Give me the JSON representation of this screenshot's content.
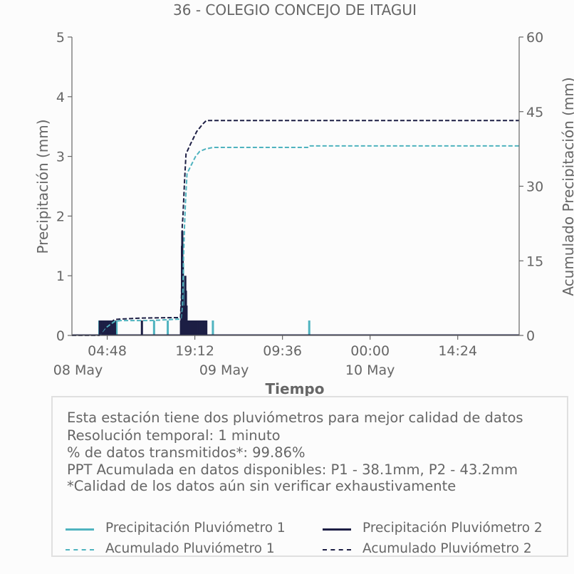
{
  "chart_data": {
    "type": "line",
    "title": "36 - COLEGIO CONCEJO DE ITAGUI",
    "xlabel": "Tiempo",
    "ylabel": "Precipitación (mm)",
    "y2label": "Acumulado Precipitación (mm)",
    "ylim": [
      0,
      5
    ],
    "y2lim": [
      0,
      60
    ],
    "yticks": [
      "0",
      "1",
      "2",
      "3",
      "4",
      "5"
    ],
    "y2ticks": [
      "0",
      "15",
      "30",
      "45",
      "60"
    ],
    "xlim": [
      "2024-05-07T23:00",
      "2024-05-11T00:30"
    ],
    "xticks": [
      {
        "t": "2024-05-08T04:48",
        "label": "04:48"
      },
      {
        "t": "2024-05-08T19:12",
        "label": "19:12"
      },
      {
        "t": "2024-05-09T09:36",
        "label": "09:36"
      },
      {
        "t": "2024-05-10T00:00",
        "label": "00:00"
      },
      {
        "t": "2024-05-10T14:24",
        "label": "14:24"
      }
    ],
    "date_labels": [
      {
        "t": "2024-05-08T00:00",
        "label": "08 May"
      },
      {
        "t": "2024-05-09T00:00",
        "label": "09 May"
      },
      {
        "t": "2024-05-10T00:00",
        "label": "10 May"
      }
    ],
    "series": [
      {
        "name": "Precipitación Pluviómetro 1",
        "kind": "bars",
        "axis": "left",
        "color": "#4fb3bf",
        "points": [
          [
            "2024-05-08T03:30",
            0.25
          ],
          [
            "2024-05-08T03:50",
            0.25
          ],
          [
            "2024-05-08T04:10",
            0.25
          ],
          [
            "2024-05-08T04:30",
            0.25
          ],
          [
            "2024-05-08T05:00",
            0.25
          ],
          [
            "2024-05-08T05:20",
            0.25
          ],
          [
            "2024-05-08T05:40",
            0.25
          ],
          [
            "2024-05-08T06:00",
            0.25
          ],
          [
            "2024-05-08T06:20",
            0.25
          ],
          [
            "2024-05-08T12:30",
            0.25
          ],
          [
            "2024-05-08T14:45",
            0.25
          ],
          [
            "2024-05-08T17:10",
            0.5
          ],
          [
            "2024-05-08T17:16",
            1.2
          ],
          [
            "2024-05-08T17:22",
            0.75
          ],
          [
            "2024-05-08T17:30",
            0.5
          ],
          [
            "2024-05-08T17:38",
            0.75
          ],
          [
            "2024-05-08T17:50",
            0.5
          ],
          [
            "2024-05-08T18:10",
            0.25
          ],
          [
            "2024-05-08T18:30",
            0.25
          ],
          [
            "2024-05-08T18:50",
            0.25
          ],
          [
            "2024-05-08T19:10",
            0.25
          ],
          [
            "2024-05-08T19:30",
            0.25
          ],
          [
            "2024-05-08T20:00",
            0.25
          ],
          [
            "2024-05-08T20:20",
            0.25
          ],
          [
            "2024-05-08T20:40",
            0.25
          ],
          [
            "2024-05-08T22:10",
            0.25
          ],
          [
            "2024-05-09T14:00",
            0.25
          ]
        ]
      },
      {
        "name": "Precipitación Pluviómetro 2",
        "kind": "bars",
        "axis": "left",
        "color": "#1d1f45",
        "points": [
          [
            "2024-05-08T03:35",
            0.25
          ],
          [
            "2024-05-08T03:45",
            0.25
          ],
          [
            "2024-05-08T03:55",
            0.25
          ],
          [
            "2024-05-08T04:05",
            0.25
          ],
          [
            "2024-05-08T04:15",
            0.25
          ],
          [
            "2024-05-08T04:25",
            0.25
          ],
          [
            "2024-05-08T04:35",
            0.25
          ],
          [
            "2024-05-08T04:45",
            0.25
          ],
          [
            "2024-05-08T04:55",
            0.25
          ],
          [
            "2024-05-08T05:05",
            0.25
          ],
          [
            "2024-05-08T05:15",
            0.25
          ],
          [
            "2024-05-08T05:25",
            0.25
          ],
          [
            "2024-05-08T05:35",
            0.25
          ],
          [
            "2024-05-08T05:45",
            0.25
          ],
          [
            "2024-05-08T05:55",
            0.25
          ],
          [
            "2024-05-08T06:05",
            0.25
          ],
          [
            "2024-05-08T10:30",
            0.25
          ],
          [
            "2024-05-08T16:55",
            0.25
          ],
          [
            "2024-05-08T17:00",
            0.5
          ],
          [
            "2024-05-08T17:05",
            1.5
          ],
          [
            "2024-05-08T17:08",
            1.75
          ],
          [
            "2024-05-08T17:12",
            1.25
          ],
          [
            "2024-05-08T17:18",
            0.5
          ],
          [
            "2024-05-08T17:25",
            0.25
          ],
          [
            "2024-05-08T17:32",
            0.5
          ],
          [
            "2024-05-08T17:38",
            1.0
          ],
          [
            "2024-05-08T17:44",
            0.75
          ],
          [
            "2024-05-08T17:50",
            0.5
          ],
          [
            "2024-05-08T17:56",
            0.25
          ],
          [
            "2024-05-08T18:02",
            0.25
          ],
          [
            "2024-05-08T18:08",
            0.25
          ],
          [
            "2024-05-08T18:14",
            0.25
          ],
          [
            "2024-05-08T18:20",
            0.25
          ],
          [
            "2024-05-08T18:26",
            0.25
          ],
          [
            "2024-05-08T18:32",
            0.25
          ],
          [
            "2024-05-08T18:38",
            0.25
          ],
          [
            "2024-05-08T18:44",
            0.25
          ],
          [
            "2024-05-08T18:50",
            0.25
          ],
          [
            "2024-05-08T18:56",
            0.25
          ],
          [
            "2024-05-08T19:02",
            0.25
          ],
          [
            "2024-05-08T19:08",
            0.25
          ],
          [
            "2024-05-08T19:14",
            0.25
          ],
          [
            "2024-05-08T19:20",
            0.25
          ],
          [
            "2024-05-08T19:26",
            0.25
          ],
          [
            "2024-05-08T19:32",
            0.25
          ],
          [
            "2024-05-08T19:38",
            0.25
          ],
          [
            "2024-05-08T19:44",
            0.25
          ],
          [
            "2024-05-08T19:55",
            0.25
          ],
          [
            "2024-05-08T20:05",
            0.25
          ],
          [
            "2024-05-08T20:15",
            0.25
          ],
          [
            "2024-05-08T20:25",
            0.25
          ],
          [
            "2024-05-08T20:35",
            0.25
          ],
          [
            "2024-05-08T20:45",
            0.25
          ],
          [
            "2024-05-08T20:55",
            0.25
          ],
          [
            "2024-05-08T21:05",
            0.25
          ]
        ]
      },
      {
        "name": "Acumulado Pluviómetro 1",
        "kind": "cumulative",
        "axis": "right",
        "color": "#4fb3bf",
        "points": [
          [
            "2024-05-07T23:00",
            0
          ],
          [
            "2024-05-08T03:30",
            0
          ],
          [
            "2024-05-08T04:30",
            1.5
          ],
          [
            "2024-05-08T06:00",
            2.8
          ],
          [
            "2024-05-08T07:00",
            3.0
          ],
          [
            "2024-05-08T12:00",
            3.0
          ],
          [
            "2024-05-08T16:55",
            3.3
          ],
          [
            "2024-05-08T17:10",
            6.0
          ],
          [
            "2024-05-08T17:18",
            14.0
          ],
          [
            "2024-05-08T17:25",
            19.0
          ],
          [
            "2024-05-08T17:30",
            22.0
          ],
          [
            "2024-05-08T17:40",
            27.0
          ],
          [
            "2024-05-08T17:55",
            32.5
          ],
          [
            "2024-05-08T18:30",
            34.0
          ],
          [
            "2024-05-08T19:20",
            36.0
          ],
          [
            "2024-05-08T20:00",
            37.0
          ],
          [
            "2024-05-08T21:00",
            37.5
          ],
          [
            "2024-05-08T22:10",
            37.8
          ],
          [
            "2024-05-09T14:00",
            37.8
          ],
          [
            "2024-05-09T14:10",
            38.1
          ],
          [
            "2024-05-11T00:30",
            38.1
          ]
        ]
      },
      {
        "name": "Acumulado Pluviómetro 2",
        "kind": "cumulative",
        "axis": "right",
        "color": "#1d1f45",
        "points": [
          [
            "2024-05-07T23:00",
            0
          ],
          [
            "2024-05-08T03:30",
            0
          ],
          [
            "2024-05-08T04:30",
            1.8
          ],
          [
            "2024-05-08T06:00",
            3.2
          ],
          [
            "2024-05-08T07:00",
            3.3
          ],
          [
            "2024-05-08T10:30",
            3.5
          ],
          [
            "2024-05-08T16:50",
            3.6
          ],
          [
            "2024-05-08T17:00",
            8.0
          ],
          [
            "2024-05-08T17:05",
            15.0
          ],
          [
            "2024-05-08T17:08",
            22.0
          ],
          [
            "2024-05-08T17:15",
            24.0
          ],
          [
            "2024-05-08T17:30",
            31.0
          ],
          [
            "2024-05-08T17:45",
            36.5
          ],
          [
            "2024-05-08T18:30",
            38.5
          ],
          [
            "2024-05-08T19:30",
            41.0
          ],
          [
            "2024-05-08T20:30",
            42.5
          ],
          [
            "2024-05-08T21:05",
            43.2
          ],
          [
            "2024-05-11T00:30",
            43.2
          ]
        ]
      }
    ]
  },
  "info": {
    "lines": [
      "Esta estación tiene dos pluviómetros para mejor calidad de datos",
      "Resolución temporal: 1 minuto",
      "% de datos transmitidos*: 99.86%",
      "PPT Acumulada en datos disponibles: P1 - 38.1mm, P2 - 43.2mm",
      "*Calidad de los datos aún sin verificar exhaustivamente"
    ]
  },
  "legend": {
    "items": [
      {
        "label": "Precipitación Pluviómetro 1",
        "color": "#4fb3bf",
        "style": "solid"
      },
      {
        "label": "Precipitación Pluviómetro 2",
        "color": "#1d1f45",
        "style": "solid"
      },
      {
        "label": "Acumulado Pluviómetro 1",
        "color": "#4fb3bf",
        "style": "dashed"
      },
      {
        "label": "Acumulado Pluviómetro 2",
        "color": "#1d1f45",
        "style": "dashed"
      }
    ]
  }
}
